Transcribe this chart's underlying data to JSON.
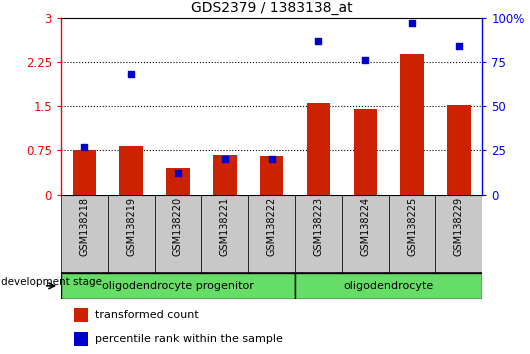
{
  "title": "GDS2379 / 1383138_at",
  "samples": [
    "GSM138218",
    "GSM138219",
    "GSM138220",
    "GSM138221",
    "GSM138222",
    "GSM138223",
    "GSM138224",
    "GSM138225",
    "GSM138229"
  ],
  "transformed_count": [
    0.75,
    0.82,
    0.45,
    0.68,
    0.65,
    1.55,
    1.45,
    2.38,
    1.52
  ],
  "percentile_rank": [
    27,
    68,
    12,
    20,
    20,
    87,
    76,
    97,
    84
  ],
  "groups": [
    {
      "label": "oligodendrocyte progenitor",
      "start": 0,
      "end": 4,
      "color": "#90EE90"
    },
    {
      "label": "oligodendrocyte",
      "start": 5,
      "end": 8,
      "color": "#90EE90"
    }
  ],
  "bar_color": "#CC2200",
  "dot_color": "#0000CC",
  "ylim_left": [
    0,
    3
  ],
  "ylim_right": [
    0,
    100
  ],
  "yticks_left": [
    0,
    0.75,
    1.5,
    2.25,
    3
  ],
  "yticks_right": [
    0,
    25,
    50,
    75,
    100
  ],
  "grid_lines": [
    0.75,
    1.5,
    2.25
  ],
  "bar_width": 0.5,
  "legend_bar_label": "transformed count",
  "legend_dot_label": "percentile rank within the sample",
  "dev_stage_label": "development stage",
  "tick_area_color": "#C8C8C8",
  "group_box_color": "#66DD66",
  "separator_col": 4
}
